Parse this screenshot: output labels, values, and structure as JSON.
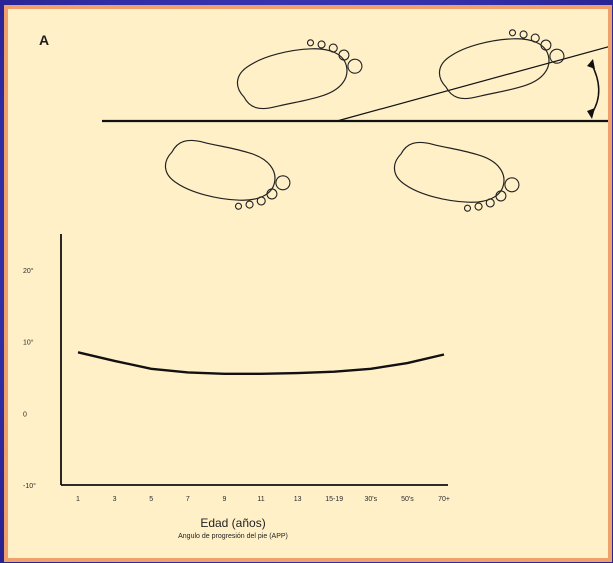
{
  "figure": {
    "panel_label": "A"
  },
  "chart_data": {
    "type": "line",
    "title": "",
    "xlabel": "Edad (años)",
    "caption": "Angulo de progresión del pie (APP)",
    "x_categories": [
      "1",
      "3",
      "5",
      "7",
      "9",
      "11",
      "13",
      "15-19",
      "30's",
      "50's",
      "70+"
    ],
    "y_ticks": [
      "20°",
      "10°",
      "0",
      "-10°"
    ],
    "y_tick_values": [
      20,
      10,
      0,
      -10
    ],
    "ylim": [
      -10,
      25
    ],
    "series": [
      {
        "name": "",
        "values": [
          8.5,
          7.3,
          6.2,
          5.7,
          5.5,
          5.5,
          5.6,
          5.8,
          6.2,
          7.0,
          8.2
        ]
      }
    ],
    "grid": false,
    "legend": "none"
  },
  "colors": {
    "background": "#fff0c8",
    "frame": "#f0a06a",
    "slide": "#3834b1",
    "line": "#111111"
  },
  "icons": {
    "footprints": [
      "left-foot-icon",
      "right-foot-icon"
    ]
  }
}
